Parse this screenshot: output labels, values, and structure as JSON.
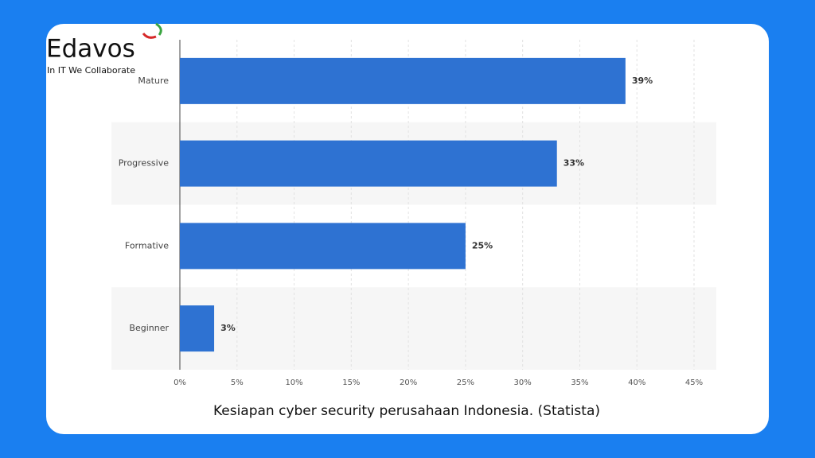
{
  "brand": {
    "name": "Edavos",
    "tagline": "In IT We Collaborate"
  },
  "chart_data": {
    "type": "bar",
    "orientation": "horizontal",
    "categories": [
      "Mature",
      "Progressive",
      "Formative",
      "Beginner"
    ],
    "values": [
      39,
      33,
      25,
      3
    ],
    "value_labels": [
      "39%",
      "33%",
      "25%",
      "3%"
    ],
    "color": "#2e72d2",
    "xlim": [
      0,
      45
    ],
    "xticks": [
      {
        "value": 0,
        "label": "0%"
      },
      {
        "value": 5,
        "label": "5%"
      },
      {
        "value": 10,
        "label": "10%"
      },
      {
        "value": 15,
        "label": "15%"
      },
      {
        "value": 20,
        "label": "20%"
      },
      {
        "value": 25,
        "label": "25%"
      },
      {
        "value": 30,
        "label": "30%"
      },
      {
        "value": 35,
        "label": "35%"
      },
      {
        "value": 40,
        "label": "40%"
      },
      {
        "value": 45,
        "label": "45%"
      }
    ],
    "grid": true,
    "caption": "Kesiapan cyber security perusahaan Indonesia. (Statista)"
  }
}
